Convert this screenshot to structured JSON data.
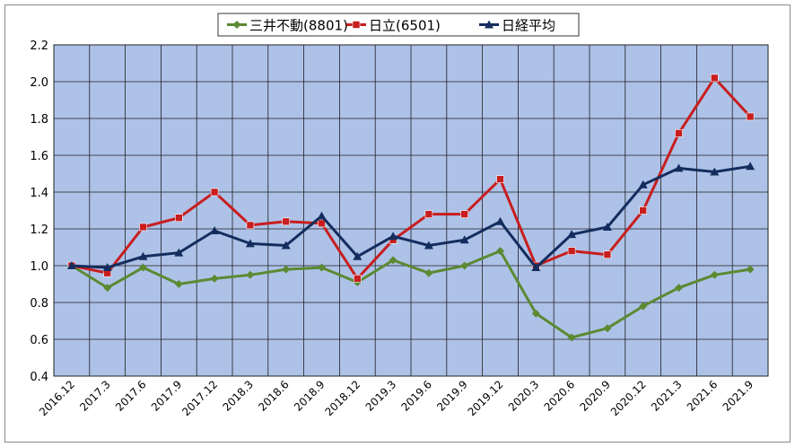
{
  "chart_data": {
    "type": "line",
    "title": "",
    "xlabel": "",
    "ylabel": "",
    "ylim": [
      0.4,
      2.2
    ],
    "yticks": [
      "0.4",
      "0.6",
      "0.8",
      "1.0",
      "1.2",
      "1.4",
      "1.6",
      "1.8",
      "2.0",
      "2.2"
    ],
    "grid": true,
    "legend_position": "top-center",
    "plot_background": "#aec2e8",
    "categories": [
      "2016.12",
      "2017.3",
      "2017.6",
      "2017.9",
      "2017.12",
      "2018.3",
      "2018.6",
      "2018.9",
      "2018.12",
      "2019.3",
      "2019.6",
      "2019.9",
      "2019.12",
      "2020.3",
      "2020.6",
      "2020.9",
      "2020.12",
      "2021.3",
      "2021.6",
      "2021.9"
    ],
    "series": [
      {
        "name": "三井不動(8801)",
        "color": "#5b8a32",
        "marker": "diamond",
        "values": [
          1.0,
          0.88,
          0.99,
          0.9,
          0.93,
          0.95,
          0.98,
          0.99,
          0.91,
          1.03,
          0.96,
          1.0,
          1.08,
          0.74,
          0.61,
          0.66,
          0.78,
          0.88,
          0.95,
          0.98
        ]
      },
      {
        "name": "日立(6501)",
        "color": "#c81e1e",
        "marker": "square",
        "values": [
          1.0,
          0.96,
          1.21,
          1.26,
          1.4,
          1.22,
          1.24,
          1.23,
          0.93,
          1.14,
          1.28,
          1.28,
          1.47,
          1.0,
          1.08,
          1.06,
          1.3,
          1.72,
          2.02,
          1.81
        ]
      },
      {
        "name": "日経平均",
        "color": "#142d5e",
        "marker": "triangle",
        "values": [
          1.0,
          0.99,
          1.05,
          1.07,
          1.19,
          1.12,
          1.11,
          1.27,
          1.05,
          1.16,
          1.11,
          1.14,
          1.24,
          0.99,
          1.17,
          1.21,
          1.44,
          1.53,
          1.51,
          1.54
        ]
      }
    ]
  }
}
